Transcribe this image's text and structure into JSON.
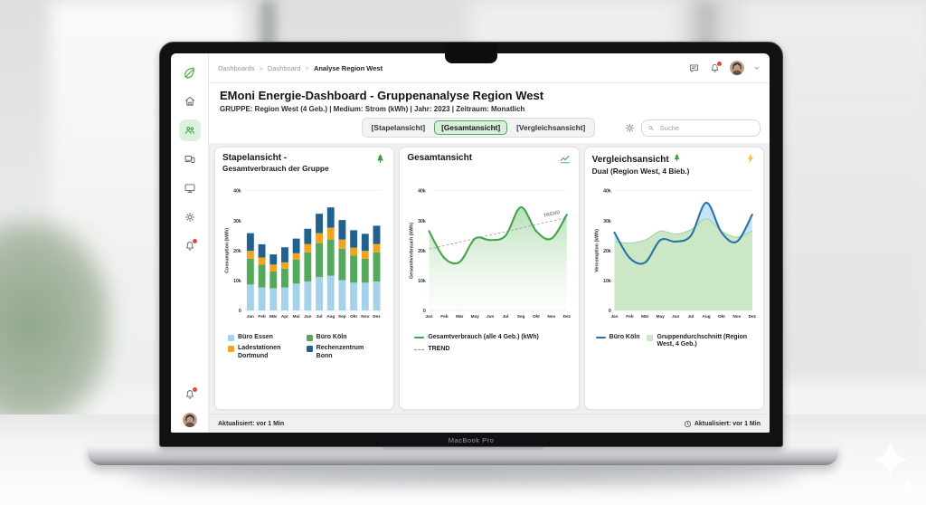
{
  "device": {
    "label": "MacBook Pro"
  },
  "topbar": {
    "breadcrumb": [
      "Dashboards",
      "Dashboard",
      "Analyse Region West"
    ],
    "separator": ">"
  },
  "header": {
    "title": "EMoni Energie-Dashboard - Gruppenanalyse Region West",
    "meta": "GRUPPE: Region West (4 Geb.)   |   Medium: Strom (kWh)   |   Jahr: 2023   |   Zeitraum: Monatlich"
  },
  "toolbar": {
    "tabs": [
      {
        "label": "[Stapelansicht]",
        "active": false
      },
      {
        "label": "[Gesamtansicht]",
        "active": true
      },
      {
        "label": "[Vergleichsansicht]",
        "active": false
      }
    ],
    "search_placeholder": "Suche"
  },
  "sidebar": {
    "logo_icon": "leaf-icon",
    "items": [
      "home-icon",
      "users-group-icon",
      "devices-icon",
      "monitor-icon",
      "settings-gear-icon",
      "notifications-bell-icon"
    ],
    "active_item": "users-group-icon",
    "bottom": [
      "alerts-bell-icon",
      "user-avatar"
    ]
  },
  "statusbar": {
    "left": "Aktualisiert: vor 1 Min",
    "right": "Aktualisiert: vor 1 Min"
  },
  "chart_data": [
    {
      "type": "stacked-bar",
      "title": "Stapelansicht -",
      "subtitle": "Gesamtverbrauch der Gruppe",
      "corner_icon": "tree-icon",
      "ylabel": "Coosumption (kWh)",
      "ylim": [
        0,
        40000
      ],
      "yticks": [
        {
          "v": 0,
          "label": "0"
        },
        {
          "v": 10000,
          "label": "10k"
        },
        {
          "v": 20000,
          "label": "20k"
        },
        {
          "v": 30000,
          "label": "30k"
        },
        {
          "v": 40000,
          "label": "40k"
        }
      ],
      "categories": [
        "Jan",
        "Feb",
        "Mär",
        "Apr",
        "Mai",
        "Jun",
        "Jul",
        "Aug",
        "Sep",
        "Okt",
        "Nov",
        "Dez"
      ],
      "series": [
        {
          "name": "Büro Essen",
          "color": "#a3d2ea",
          "values": [
            8700,
            7700,
            7400,
            7700,
            9000,
            9700,
            11200,
            11600,
            10100,
            9300,
            9300,
            9700
          ]
        },
        {
          "name": "Büro Köln",
          "color": "#54a95c",
          "values": [
            8600,
            7600,
            5600,
            6300,
            8000,
            9700,
            11300,
            12100,
            10500,
            9000,
            8000,
            9700
          ]
        },
        {
          "name": "Ladestationen Dortmund",
          "color": "#f2a41f",
          "values": [
            2600,
            2400,
            2300,
            2100,
            2100,
            2800,
            3300,
            3900,
            3100,
            2700,
            2600,
            2800
          ]
        },
        {
          "name": "Rechenzentrum Bonn",
          "color": "#20618f",
          "values": [
            5900,
            4400,
            3400,
            5000,
            4900,
            5100,
            6500,
            6800,
            6500,
            5800,
            5700,
            6100
          ]
        }
      ],
      "legend": [
        {
          "swatch": "square",
          "color": "#a3d2ea",
          "label": "Büro Essen"
        },
        {
          "swatch": "square",
          "color": "#54a95c",
          "label": "Büro Köln"
        },
        {
          "swatch": "square",
          "color": "#f2a41f",
          "label": "Ladestationen Dortmund"
        },
        {
          "swatch": "square",
          "color": "#20618f",
          "label": "Rechenzentrum Bonn"
        }
      ]
    },
    {
      "type": "area-line",
      "title": "Gesamtansicht",
      "corner_icon": "line-chart-icon",
      "ylabel": "Gesamhverbrauch (kWh)",
      "ylim": [
        0,
        40000
      ],
      "yticks": [
        {
          "v": 0,
          "label": "0"
        },
        {
          "v": 10000,
          "label": "10k"
        },
        {
          "v": 20000,
          "label": "20k"
        },
        {
          "v": 30000,
          "label": "30k"
        },
        {
          "v": 40000,
          "label": "40k"
        }
      ],
      "categories": [
        "Jan",
        "Feb",
        "Mär",
        "May",
        "Jun",
        "Jul",
        "Seg",
        "Okt",
        "Nov",
        "Dez"
      ],
      "series": [
        {
          "name": "Gesamtverbrauch (alle 4 Geb.) (kWh)",
          "color": "#45a349",
          "values": [
            26500,
            17500,
            16200,
            24000,
            23500,
            25000,
            34500,
            26500,
            24000,
            32000
          ]
        }
      ],
      "trend": {
        "label": "TREND",
        "start": 20500,
        "end": 31000,
        "color": "#9b9b9b"
      },
      "legend": [
        {
          "swatch": "line",
          "color": "#45a349",
          "label": "Gesamtverbrauch (alle 4 Geb.) (kWh)"
        },
        {
          "swatch": "dash",
          "color": "#999999",
          "label": "TREND"
        }
      ]
    },
    {
      "type": "dual-line",
      "title": "Vergleichsansicht",
      "title_icon": "tree-icon",
      "subtitle": "Dual (Region West, 4 Bieb.)",
      "corner_icon": "lightning-icon",
      "ylabel": "Vercomption (kWh)",
      "ylim": [
        0,
        40000
      ],
      "yticks": [
        {
          "v": 0,
          "label": "0"
        },
        {
          "v": 10000,
          "label": "10k"
        },
        {
          "v": 20000,
          "label": "20k"
        },
        {
          "v": 30000,
          "label": "30k"
        },
        {
          "v": 40000,
          "label": "40k"
        }
      ],
      "categories": [
        "Jan",
        "Feb",
        "Mär",
        "May",
        "Jun",
        "Jul",
        "Aug",
        "Okt",
        "Nov",
        "Dez"
      ],
      "series": [
        {
          "name": "Gruppendurchschnitt (Region West, 4 Geb.)",
          "style": "area",
          "color": "#cbe7c6",
          "line_color": "#a2d49c",
          "values": [
            23000,
            22500,
            23500,
            26500,
            25500,
            27000,
            30500,
            26500,
            24500,
            26500
          ]
        },
        {
          "name": "Büro Köln",
          "style": "line",
          "color": "#2673a8",
          "fill": "#c6e2f5",
          "values": [
            26000,
            17500,
            16000,
            23500,
            23000,
            25000,
            36000,
            26000,
            23000,
            32000
          ]
        }
      ],
      "legend": [
        {
          "swatch": "line",
          "color": "#2673a8",
          "label": "Büro Köln"
        },
        {
          "swatch": "square",
          "color": "#cbe7c6",
          "label": "Gruppendurchschnitt (Region West, 4 Geb.)"
        }
      ]
    }
  ]
}
